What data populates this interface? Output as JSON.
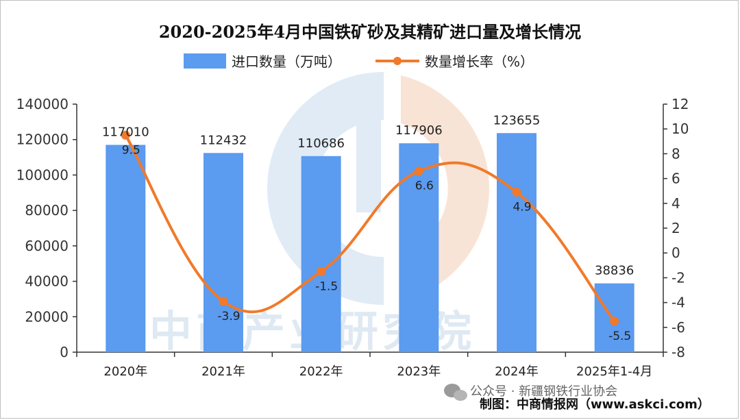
{
  "chart_data": {
    "type": "bar",
    "title": "2020-2025年4月中国铁矿砂及其精矿进口量及增长情况",
    "categories": [
      "2020年",
      "2021年",
      "2022年",
      "2023年",
      "2024年",
      "2025年1-4月"
    ],
    "series": [
      {
        "name": "进口数量（万吨）",
        "type": "bar",
        "axis": "left",
        "color": "#5b9bf0",
        "values": [
          117010,
          112432,
          110686,
          117906,
          123655,
          38836
        ]
      },
      {
        "name": "数量增长率（%）",
        "type": "line",
        "axis": "right",
        "color": "#f07a2a",
        "values": [
          9.5,
          -3.9,
          -1.5,
          6.6,
          4.9,
          -5.5
        ]
      }
    ],
    "y_left": {
      "ylim": [
        0,
        140000
      ],
      "ticks": [
        "0",
        "20000",
        "40000",
        "60000",
        "80000",
        "100000",
        "120000",
        "140000"
      ]
    },
    "y_right": {
      "ylim": [
        -8,
        12
      ],
      "ticks": [
        "-8",
        "-6",
        "-4",
        "-2",
        "0",
        "2",
        "4",
        "6",
        "8",
        "10",
        "12"
      ]
    },
    "legend_position": "top-center",
    "grid": false
  },
  "watermark": {
    "text": "中商产业研究院"
  },
  "footer": {
    "wechat_label": "公众号 · 新疆钢铁行业协会",
    "credit": "制图：中商情报网（www.askci.com）"
  }
}
